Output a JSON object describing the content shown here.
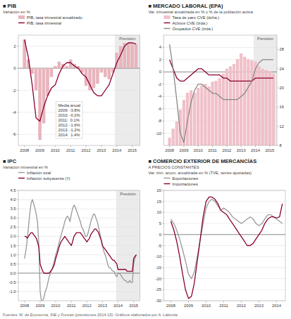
{
  "chart_data": [
    {
      "type": "bar",
      "title": "■ PIB",
      "subtitle": [
        "Variación en %"
      ],
      "x": [
        2008.0,
        2008.25,
        2008.5,
        2008.75,
        2009.0,
        2009.25,
        2009.5,
        2009.75,
        2010.0,
        2010.25,
        2010.5,
        2010.75,
        2011.0,
        2011.25,
        2011.5,
        2011.75,
        2012.0,
        2012.25,
        2012.5,
        2012.75,
        2013.0,
        2013.25,
        2013.5,
        2013.75,
        2014.0,
        2014.25,
        2014.5,
        2014.75,
        2015.0,
        2015.25
      ],
      "series": [
        {
          "name": "PIB, tasa trimestral anualizado",
          "type": "bar",
          "color": "#e8b4bc",
          "values": [
            2.6,
            0.8,
            -0.5,
            -2.0,
            -6.5,
            -5.0,
            -2.5,
            -0.8,
            0.2,
            0.6,
            0.4,
            0.2,
            0.8,
            0.4,
            0.2,
            -0.4,
            -1.6,
            -2.0,
            -1.8,
            -1.4,
            -0.4,
            -0.8,
            -1.0,
            -0.4,
            1.4,
            2.0,
            2.3,
            2.3,
            2.2,
            2.2
          ]
        },
        {
          "name": "PIB, tasa trimestral",
          "type": "line",
          "color": "#8b0030",
          "values": [
            2.6,
            1.0,
            -1.5,
            -4.5,
            -4.8,
            -3.5,
            -2.5,
            -1.8,
            -1.5,
            -0.5,
            0.2,
            0.5,
            0.5,
            0.2,
            0.0,
            -0.5,
            -0.8,
            -1.5,
            -2.2,
            -2.5,
            -2.5,
            -2.0,
            -1.5,
            -0.5,
            0.5,
            1.2,
            2.0,
            2.3,
            2.3,
            2.2
          ]
        }
      ],
      "annotation": [
        "Media anual",
        "2009: -3.8%",
        "2010: -0.2%",
        "2011:  0.1%",
        "2012: -1.6%",
        "2013: -1.2%",
        "2014:  1.4%"
      ],
      "preview": {
        "start": 2013.875,
        "label": "Previsión",
        "color": "#ebebeb"
      },
      "xlim": [
        2007.6,
        2015.5
      ],
      "xticks": [
        2008,
        2009,
        2010,
        2011,
        2012,
        2013,
        2014,
        2015
      ],
      "ylim": [
        -7,
        3
      ],
      "yticks": [
        -6,
        -4,
        -2,
        0,
        2
      ],
      "grid": true,
      "legend": "top"
    },
    {
      "type": "bar",
      "title": "■ MERCADO LABORAL (EPA)",
      "subtitle": [
        "Var. trimestral anualizada en % y % de la población activa"
      ],
      "x": [
        2008.0,
        2008.25,
        2008.5,
        2008.75,
        2009.0,
        2009.25,
        2009.5,
        2009.75,
        2010.0,
        2010.25,
        2010.5,
        2010.75,
        2011.0,
        2011.25,
        2011.5,
        2011.75,
        2012.0,
        2012.25,
        2012.5,
        2012.75,
        2013.0,
        2013.25,
        2013.5,
        2013.75,
        2014.0,
        2014.25,
        2014.5,
        2014.75,
        2015.0,
        2015.25
      ],
      "series": [
        {
          "name": "Tasa de paro CVE (dcha.)",
          "type": "bar",
          "axis": "y2",
          "color": "#f0c0c8",
          "values": [
            9.6,
            11.5,
            13.0,
            15.5,
            17.5,
            19.0,
            19.5,
            19.0,
            20.0,
            20.5,
            20.8,
            20.3,
            21.3,
            21.5,
            22.0,
            23.0,
            24.0,
            24.5,
            25.0,
            26.0,
            27.2,
            26.5,
            26.0,
            25.8,
            25.5,
            24.5,
            24.0,
            23.7,
            23.5,
            23.0
          ]
        },
        {
          "name": "Activos CVE (izda.)",
          "type": "line",
          "color": "#8b0030",
          "values": [
            2.0,
            0.5,
            -1.0,
            -1.5,
            -1.5,
            -1.0,
            -0.5,
            0.0,
            0.5,
            0.5,
            0.0,
            -0.5,
            -0.5,
            -0.5,
            -0.5,
            -1.0,
            -1.0,
            -1.5,
            -1.5,
            -1.5,
            -1.5,
            -1.5,
            -1.5,
            -1.5,
            -1.0,
            -1.0,
            -1.0,
            -1.0,
            -1.0,
            -1.0
          ]
        },
        {
          "name": "Ocupados CVE (izda.)",
          "type": "line",
          "color": "#888888",
          "values": [
            4.5,
            0.5,
            -4.5,
            -10.0,
            -11.5,
            -8.0,
            -5.0,
            -3.0,
            -2.0,
            -2.0,
            -2.5,
            -3.0,
            -3.5,
            -3.5,
            -4.0,
            -4.5,
            -4.5,
            -4.5,
            -4.5,
            -4.5,
            -4.0,
            -3.5,
            -2.5,
            -1.5,
            0.5,
            1.5,
            2.0,
            2.0,
            2.0,
            2.0
          ]
        }
      ],
      "preview": {
        "start": 2013.875,
        "label": "Previsión",
        "color": "#ebebeb"
      },
      "xlim": [
        2007.6,
        2015.5
      ],
      "xticks": [
        2008,
        2009,
        2010,
        2011,
        2012,
        2013,
        2014,
        2015
      ],
      "ylim": [
        -12,
        6
      ],
      "yticks": [
        -10,
        -8,
        -6,
        -4,
        -2,
        0,
        2,
        4
      ],
      "y2lim": [
        8,
        31
      ],
      "y2ticks": [
        8,
        12,
        16,
        20,
        24,
        28
      ],
      "grid": true,
      "legend": "top"
    },
    {
      "type": "line",
      "title": "■ IPC",
      "subtitle": [
        "Variación trimestral en %"
      ],
      "x": [
        2008.0,
        2008.08,
        2008.17,
        2008.25,
        2008.33,
        2008.42,
        2008.5,
        2008.58,
        2008.67,
        2008.75,
        2008.83,
        2008.92,
        2009.0,
        2009.08,
        2009.17,
        2009.25,
        2009.33,
        2009.42,
        2009.5,
        2009.58,
        2009.67,
        2009.75,
        2009.83,
        2009.92,
        2010.0,
        2010.08,
        2010.17,
        2010.25,
        2010.33,
        2010.42,
        2010.5,
        2010.58,
        2010.67,
        2010.75,
        2010.83,
        2010.92,
        2011.0,
        2011.08,
        2011.17,
        2011.25,
        2011.33,
        2011.42,
        2011.5,
        2011.58,
        2011.67,
        2011.75,
        2011.83,
        2011.92,
        2012.0,
        2012.08,
        2012.17,
        2012.25,
        2012.33,
        2012.42,
        2012.5,
        2012.58,
        2012.67,
        2012.75,
        2012.83,
        2012.92,
        2013.0,
        2013.08,
        2013.17,
        2013.25,
        2013.33,
        2013.42,
        2013.5,
        2013.58,
        2013.67,
        2013.75,
        2013.83,
        2013.92,
        2014.0,
        2014.08,
        2014.17,
        2014.25,
        2014.33,
        2014.42,
        2014.5,
        2014.58,
        2014.67,
        2014.75,
        2014.83,
        2014.92,
        2015.0,
        2015.08,
        2015.17
      ],
      "series": [
        {
          "name": "Inflación total",
          "type": "line",
          "color": "#999999",
          "values": [
            0.8,
            1.2,
            1.8,
            2.5,
            3.2,
            3.8,
            4.0,
            3.8,
            3.5,
            3.2,
            2.8,
            1.5,
            -1.0,
            -1.5,
            -1.5,
            -1.3,
            -1.0,
            -0.8,
            -0.5,
            -0.2,
            0.0,
            0.2,
            0.4,
            0.7,
            1.0,
            1.2,
            1.5,
            1.8,
            2.0,
            2.3,
            2.5,
            2.8,
            3.0,
            3.1,
            3.0,
            2.8,
            3.2,
            3.5,
            3.7,
            3.6,
            3.4,
            3.2,
            3.0,
            2.8,
            2.5,
            2.4,
            2.2,
            2.0,
            2.0,
            2.2,
            2.5,
            2.8,
            3.0,
            3.2,
            3.2,
            3.0,
            2.8,
            2.5,
            2.2,
            1.8,
            1.5,
            1.2,
            1.0,
            0.8,
            0.5,
            0.3,
            0.3,
            0.2,
            0.1,
            0.1,
            -0.1,
            -0.2,
            0.0,
            0.0,
            -0.1,
            -0.2,
            -0.3,
            -0.4,
            -0.4,
            -0.5,
            -0.5,
            -0.4,
            -0.5,
            -0.5,
            0.5,
            0.8,
            1.0
          ]
        },
        {
          "name": "Inflación subyacente (†)",
          "type": "line",
          "color": "#8b0030",
          "values": [
            2.0,
            2.0,
            1.9,
            2.0,
            2.1,
            2.2,
            2.2,
            2.1,
            2.0,
            1.9,
            1.7,
            1.4,
            0.5,
            0.3,
            0.1,
            0.0,
            0.0,
            0.0,
            0.0,
            0.0,
            0.1,
            0.2,
            0.3,
            0.5,
            0.8,
            1.0,
            1.3,
            1.5,
            1.7,
            1.8,
            1.9,
            2.0,
            1.9,
            1.8,
            1.7,
            1.6,
            1.5,
            1.7,
            2.0,
            2.1,
            2.2,
            2.2,
            2.2,
            2.2,
            2.1,
            2.0,
            1.9,
            1.8,
            1.7,
            1.8,
            1.9,
            2.1,
            2.2,
            2.3,
            2.4,
            2.4,
            2.3,
            2.2,
            2.0,
            1.8,
            1.5,
            1.4,
            1.3,
            1.2,
            1.1,
            1.0,
            0.9,
            0.8,
            0.7,
            0.7,
            0.6,
            0.5,
            0.2,
            0.2,
            0.2,
            0.2,
            0.2,
            0.2,
            0.2,
            0.1,
            0.1,
            0.1,
            0.1,
            0.1,
            0.8,
            0.9,
            1.0
          ]
        }
      ],
      "preview": {
        "start": 2013.875,
        "label": "Previsión",
        "color": "#ebebeb"
      },
      "xlim": [
        2007.6,
        2015.4
      ],
      "xticks": [
        2008,
        2009,
        2010,
        2011,
        2012,
        2013,
        2014,
        2015
      ],
      "ylim": [
        -1.5,
        4.5
      ],
      "yticks": [
        {
          "value": -1.0,
          "label": "-1.0"
        },
        -0.5,
        {
          "value": 0.0,
          "label": "0.0"
        },
        0.5,
        {
          "value": 1.0,
          "label": "1.0"
        },
        1.5,
        {
          "value": 2.0,
          "label": "2.0"
        },
        2.5,
        {
          "value": 3.0,
          "label": "3.0"
        },
        3.5,
        {
          "value": 4.0,
          "label": "4.0"
        },
        4.5
      ],
      "grid": true,
      "legend": "top"
    },
    {
      "type": "line",
      "title": "■ COMERCIO EXTERIOR DE MERCANCÍAS",
      "subtitle": [
        "A PRECIOS CONSTANTES",
        "Var. trim. acum. anualizada en % (TVE, series ajustadas)"
      ],
      "x": [
        2008.0,
        2008.17,
        2008.33,
        2008.5,
        2008.67,
        2008.83,
        2009.0,
        2009.17,
        2009.33,
        2009.5,
        2009.67,
        2009.83,
        2010.0,
        2010.17,
        2010.33,
        2010.5,
        2010.67,
        2010.83,
        2011.0,
        2011.17,
        2011.33,
        2011.5,
        2011.67,
        2011.83,
        2012.0,
        2012.17,
        2012.33,
        2012.5,
        2012.67,
        2012.83,
        2013.0,
        2013.17,
        2013.33,
        2013.5,
        2013.67,
        2013.83,
        2014.0,
        2014.17,
        2014.33
      ],
      "series": [
        {
          "name": "Exportaciones",
          "type": "line",
          "color": "#999999",
          "values": [
            7.0,
            5.0,
            2.0,
            -2.0,
            -7.0,
            -12.0,
            -18.0,
            -20.0,
            -17.0,
            -10.0,
            -2.0,
            5.0,
            12.0,
            15.0,
            16.0,
            15.0,
            13.0,
            11.0,
            12.0,
            11.0,
            10.0,
            8.0,
            7.0,
            6.0,
            5.0,
            6.0,
            7.0,
            8.0,
            7.0,
            5.0,
            4.0,
            5.0,
            7.0,
            9.0,
            9.0,
            8.0,
            7.0,
            6.0,
            5.0
          ]
        },
        {
          "name": "Importaciones",
          "type": "line",
          "color": "#8b0030",
          "values": [
            6.0,
            2.0,
            -3.0,
            -10.0,
            -18.0,
            -25.0,
            -29.0,
            -28.0,
            -22.0,
            -12.0,
            -2.0,
            8.0,
            15.0,
            17.0,
            17.0,
            16.0,
            14.0,
            11.0,
            10.0,
            9.0,
            7.0,
            5.0,
            3.0,
            1.0,
            -1.0,
            -3.0,
            -5.0,
            -5.0,
            -4.0,
            -2.0,
            0.0,
            2.0,
            5.0,
            7.0,
            8.0,
            8.0,
            7.5,
            8.0,
            14.0
          ]
        }
      ],
      "xlim": [
        2007.6,
        2014.5
      ],
      "xticks": [
        2008,
        2009,
        2010,
        2011,
        2012,
        2013,
        2014
      ],
      "ylim": [
        -30,
        20
      ],
      "yticks": [
        -30,
        -25,
        -20,
        -15,
        -10,
        -5,
        0,
        5,
        10,
        15,
        20
      ],
      "grid": true,
      "legend": "top"
    }
  ],
  "footer": "Fuentes: M. de Economía, INE y Funcas (previsiones 2014-15). Gráficos elaborados por A. Laborda"
}
